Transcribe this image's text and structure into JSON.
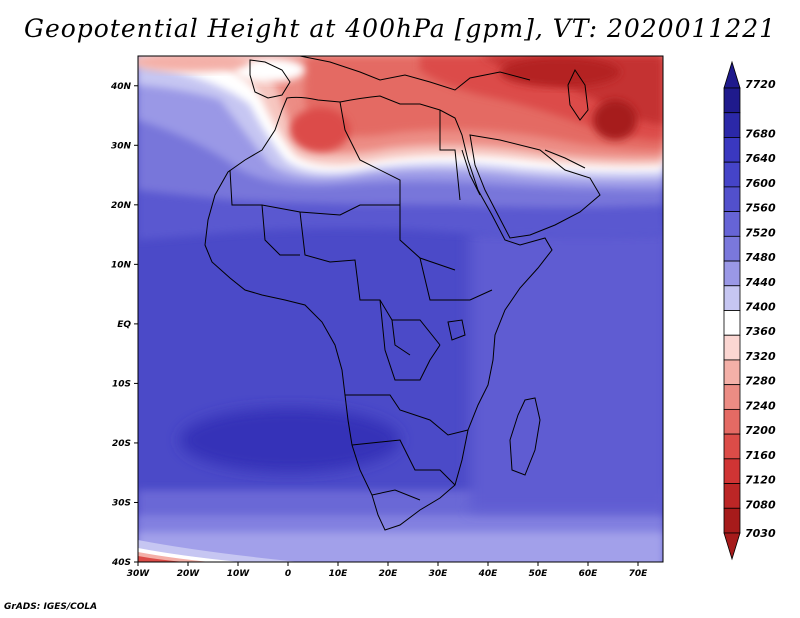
{
  "title": "Geopotential Height at 400hPa [gpm], VT: 2020011221",
  "credit": "GrADS: IGES/COLA",
  "map": {
    "lon_range": [
      -30,
      75
    ],
    "lat_range": [
      -40,
      45
    ],
    "x_ticks": [
      "30W",
      "20W",
      "10W",
      "0",
      "10E",
      "20E",
      "30E",
      "40E",
      "50E",
      "60E",
      "70E"
    ],
    "y_ticks": [
      "40N",
      "30N",
      "20N",
      "10N",
      "EQ",
      "10S",
      "20S",
      "30S",
      "40S"
    ]
  },
  "colorbar": {
    "labels": [
      "7720",
      "7680",
      "7640",
      "7600",
      "7560",
      "7520",
      "7480",
      "7440",
      "7400",
      "7360",
      "7320",
      "7280",
      "7240",
      "7200",
      "7160",
      "7120",
      "7080",
      "7030"
    ],
    "colors": [
      "#1f1a8c",
      "#2b28a8",
      "#3a38c0",
      "#4544c8",
      "#5250cc",
      "#6664d6",
      "#7a78dc",
      "#9a98e6",
      "#c6c6f2",
      "#ffffff",
      "#fbd6d2",
      "#f4b0a8",
      "#ec8c84",
      "#e46a64",
      "#dc4c48",
      "#d03434",
      "#bc2626",
      "#a61b1b"
    ]
  }
}
